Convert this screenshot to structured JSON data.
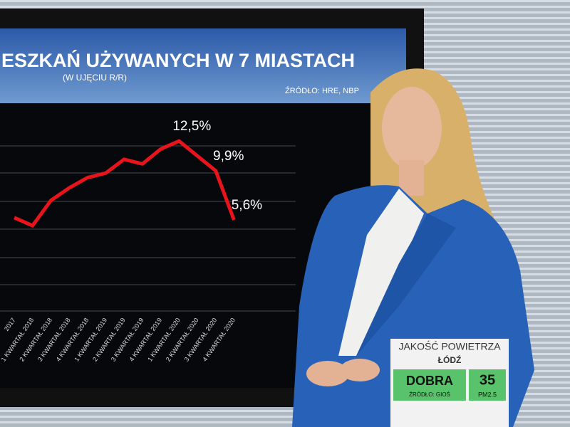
{
  "chart_data": {
    "type": "line",
    "title": "ESZKAŃ UŻYWANYCH W 7 MIASTACH",
    "subtitle": "(W UJĘCIU R/R)",
    "source": "ŹRÓDŁO: HRE, NBP",
    "categories": [
      "2017",
      "1 KWARTAŁ 2018",
      "2 KWARTAŁ 2018",
      "3 KWARTAŁ 2018",
      "4 KWARTAŁ 2018",
      "1 KWARTAŁ 2019",
      "2 KWARTAŁ 2019",
      "3 KWARTAŁ 2019",
      "4 KWARTAŁ 2019",
      "1 KWARTAŁ 2020",
      "2 KWARTAŁ 2020",
      "3 KWARTAŁ 2020",
      "4 KWARTAŁ 2020"
    ],
    "values": [
      5.8,
      5.1,
      7.3,
      8.4,
      9.3,
      9.7,
      10.9,
      10.5,
      11.8,
      12.5,
      11.2,
      9.9,
      5.6
    ],
    "value_labels": [
      null,
      null,
      null,
      null,
      null,
      null,
      null,
      null,
      null,
      "12,5%",
      null,
      "9,9%",
      "5,6%"
    ],
    "color": "#e8141b",
    "ylim": [
      -2.5,
      15
    ]
  },
  "widget": {
    "title": "JAKOŚĆ POWIETRZA",
    "city": "ŁÓDŹ",
    "status": "DOBRA",
    "source": "ŹRÓDŁO: GIOŚ",
    "value": 35,
    "unit": "PM2.5"
  }
}
